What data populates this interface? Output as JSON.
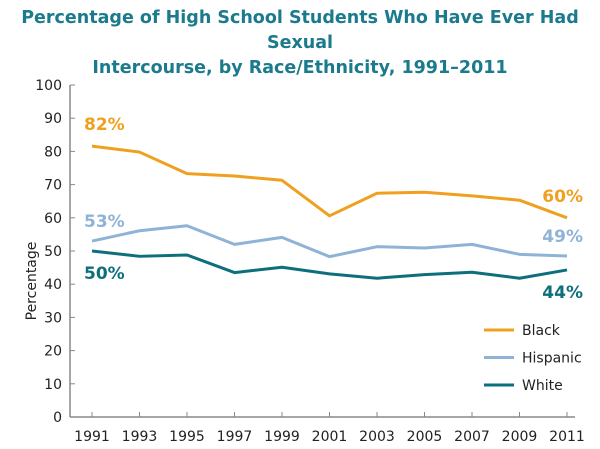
{
  "chart_data": {
    "type": "line",
    "title_line1": "Percentage of High School Students Who Have Ever Had Sexual",
    "title_line2": "Intercourse, by Race/Ethnicity, 1991–2011",
    "xlabel": "",
    "ylabel": "Percentage",
    "x": [
      1991,
      1993,
      1995,
      1997,
      1999,
      2001,
      2003,
      2005,
      2007,
      2009,
      2011
    ],
    "ylim": [
      0,
      100
    ],
    "yticks": [
      0,
      10,
      20,
      30,
      40,
      50,
      60,
      70,
      80,
      90,
      100
    ],
    "grid": false,
    "legend_position": "bottom-right",
    "series": [
      {
        "name": "Black",
        "color": "#f0a020",
        "values": [
          81.6,
          79.8,
          73.3,
          72.6,
          71.3,
          60.6,
          67.4,
          67.7,
          66.6,
          65.3,
          60.0
        ],
        "start_label": "82%",
        "end_label": "60%"
      },
      {
        "name": "Hispanic",
        "color": "#8fb3d6",
        "values": [
          53.0,
          56.1,
          57.6,
          52.0,
          54.1,
          48.3,
          51.3,
          50.9,
          52.0,
          49.0,
          48.5
        ],
        "start_label": "53%",
        "end_label": "49%"
      },
      {
        "name": "White",
        "color": "#0e6f7c",
        "values": [
          50.0,
          48.4,
          48.8,
          43.5,
          45.1,
          43.1,
          41.8,
          42.9,
          43.6,
          41.8,
          44.3
        ],
        "start_label": "50%",
        "end_label": "44%"
      }
    ]
  }
}
